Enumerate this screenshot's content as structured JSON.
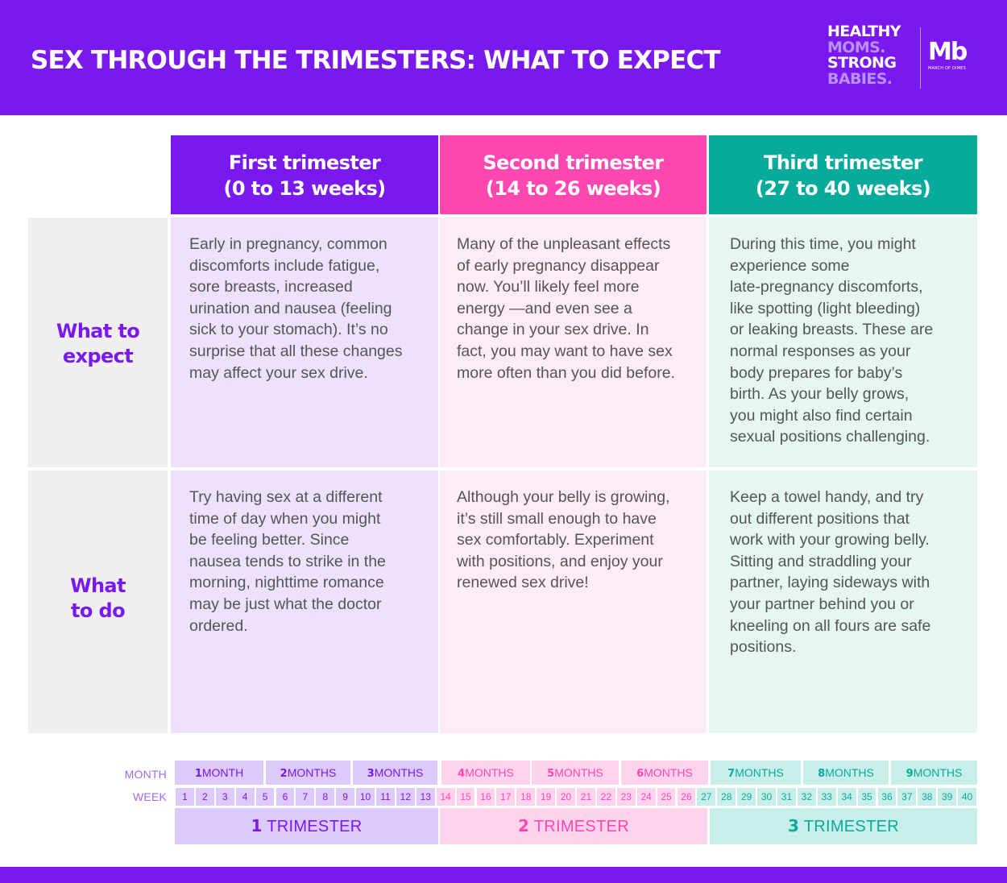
{
  "header": {
    "title": "SEX THROUGH THE TRIMESTERS: WHAT TO EXPECT",
    "brand_lines": [
      "HEALTHY",
      "MOMS.",
      "STRONG",
      "BABIES."
    ],
    "logo_mark": "Mb",
    "logo_sub": "MARCH OF DIMES",
    "colors": {
      "purple": "#7a18f0",
      "pink": "#ff47b2",
      "teal": "#08ab9b"
    }
  },
  "columns": [
    {
      "line1": "First trimester",
      "line2": "(0 to 13 weeks)"
    },
    {
      "line1": "Second trimester",
      "line2": "(14 to 26 weeks)"
    },
    {
      "line1": "Third trimester",
      "line2": "(27 to 40 weeks)"
    }
  ],
  "rows": [
    {
      "label_line1": "What to",
      "label_line2": "expect",
      "cells": [
        "Early in pregnancy, common\ndiscomforts include fatigue,\nsore breasts, increased\nurination and nausea (feeling\nsick to your stomach). It’s no\nsurprise that all these changes\nmay affect your sex drive.",
        "Many of the unpleasant effects\nof early pregnancy disappear\nnow. You’ll likely feel more\nenergy —and even see a\nchange in your sex drive. In\nfact, you may want to have sex\nmore often than you did before.",
        "During this time, you might\nexperience some\nlate-pregnancy discomforts,\nlike spotting (light bleeding)\nor leaking breasts. These are\nnormal responses as your\nbody prepares for baby’s\nbirth. As your belly grows,\nyou might also find certain\nsexual positions challenging."
      ]
    },
    {
      "label_line1": "What",
      "label_line2": "to do",
      "cells": [
        "Try having sex at a different\ntime of day when you might\nbe feeling better. Since\nnausea tends to strike in the\nmorning, nighttime romance\nmay be just what the doctor\nordered.",
        "Although your belly is growing,\nit’s still small enough to have\nsex comfortably. Experiment\nwith positions, and enjoy your\nrenewed sex drive!",
        "Keep a towel handy, and try\nout different positions that\nwork with your growing belly.\nSitting and straddling your\npartner, laying sideways with\nyour partner behind you or\nkneeling on all fours are safe\npositions."
      ]
    }
  ],
  "timeline": {
    "month_label": "MONTH",
    "week_label": "WEEK",
    "months": [
      {
        "num": "1",
        "unit": "MONTH"
      },
      {
        "num": "2",
        "unit": "MONTHS"
      },
      {
        "num": "3",
        "unit": "MONTHS"
      },
      {
        "num": "4",
        "unit": "MONTHS"
      },
      {
        "num": "5",
        "unit": "MONTHS"
      },
      {
        "num": "6",
        "unit": "MONTHS"
      },
      {
        "num": "7",
        "unit": "MONTHS"
      },
      {
        "num": "8",
        "unit": "MONTHS"
      },
      {
        "num": "9",
        "unit": "MONTHS"
      }
    ],
    "weeks": [
      "1",
      "2",
      "3",
      "4",
      "5",
      "6",
      "7",
      "8",
      "9",
      "10",
      "11",
      "12",
      "13",
      "14",
      "15",
      "16",
      "17",
      "18",
      "19",
      "20",
      "21",
      "22",
      "23",
      "24",
      "25",
      "26",
      "27",
      "28",
      "29",
      "30",
      "31",
      "32",
      "33",
      "34",
      "35",
      "36",
      "37",
      "38",
      "39",
      "40"
    ],
    "trimesters": [
      {
        "num": "1",
        "label": "TRIMESTER"
      },
      {
        "num": "2",
        "label": "TRIMESTER"
      },
      {
        "num": "3",
        "label": "TRIMESTER"
      }
    ]
  }
}
